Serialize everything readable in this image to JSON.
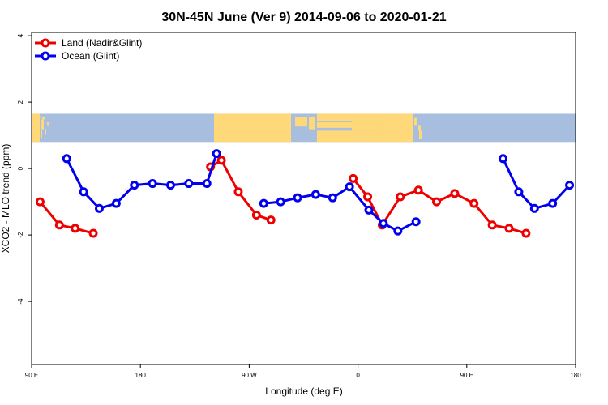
{
  "chart_data": {
    "type": "line",
    "title": "30N-45N June (Ver 9)   2014-09-06 to 2020-01-21",
    "xlabel": "Longitude (deg E)",
    "ylabel": "XCO2 - MLO trend (ppm)",
    "xlim": [
      90,
      540
    ],
    "ylim": [
      -5.9,
      4.1
    ],
    "xticks": [
      {
        "value": 90,
        "label": "90 E"
      },
      {
        "value": 180,
        "label": "180"
      },
      {
        "value": 270,
        "label": "90 W"
      },
      {
        "value": 360,
        "label": "0"
      },
      {
        "value": 450,
        "label": "90 E"
      },
      {
        "value": 540,
        "label": "180"
      }
    ],
    "yticks": [
      {
        "value": 4,
        "label": "4"
      },
      {
        "value": 2,
        "label": "2"
      },
      {
        "value": 0,
        "label": "0"
      },
      {
        "value": -2,
        "label": "-2"
      },
      {
        "value": -4,
        "label": "-4"
      }
    ],
    "map_band": {
      "ymin": 0.8,
      "ymax": 1.65,
      "ocean_color": "#a8bede",
      "land_color": "#ffd87a"
    },
    "series": [
      {
        "name": "Land (Nadir&Glint)",
        "color": "#ee0000",
        "segments": [
          [
            [
              97,
              -1.0
            ],
            [
              113,
              -1.7
            ],
            [
              126,
              -1.8
            ],
            [
              141,
              -1.95
            ]
          ],
          [
            [
              238,
              0.05
            ],
            [
              247,
              0.25
            ],
            [
              261,
              -0.7
            ],
            [
              276,
              -1.4
            ],
            [
              288,
              -1.55
            ]
          ],
          [
            [
              356,
              -0.3
            ],
            [
              368,
              -0.85
            ],
            [
              380,
              -1.7
            ],
            [
              395,
              -0.85
            ],
            [
              410,
              -0.65
            ],
            [
              425,
              -1.0
            ],
            [
              440,
              -0.75
            ],
            [
              456,
              -1.05
            ],
            [
              471,
              -1.7
            ],
            [
              485,
              -1.8
            ],
            [
              499,
              -1.95
            ]
          ]
        ]
      },
      {
        "name": "Ocean (Glint)",
        "color": "#0000ee",
        "segments": [
          [
            [
              119,
              0.3
            ],
            [
              133,
              -0.7
            ],
            [
              146,
              -1.2
            ],
            [
              160,
              -1.05
            ],
            [
              175,
              -0.5
            ],
            [
              190,
              -0.45
            ],
            [
              205,
              -0.5
            ],
            [
              220,
              -0.45
            ],
            [
              235,
              -0.45
            ],
            [
              243,
              0.45
            ]
          ],
          [
            [
              282,
              -1.05
            ],
            [
              296,
              -1.0
            ],
            [
              310,
              -0.88
            ],
            [
              325,
              -0.78
            ],
            [
              339,
              -0.88
            ],
            [
              353,
              -0.55
            ],
            [
              369,
              -1.25
            ],
            [
              381,
              -1.65
            ],
            [
              393,
              -1.88
            ],
            [
              408,
              -1.6
            ]
          ],
          [
            [
              480,
              0.3
            ],
            [
              493,
              -0.7
            ],
            [
              506,
              -1.2
            ],
            [
              521,
              -1.05
            ],
            [
              535,
              -0.5
            ]
          ]
        ]
      }
    ],
    "legend": {
      "placement": "top-left"
    }
  }
}
